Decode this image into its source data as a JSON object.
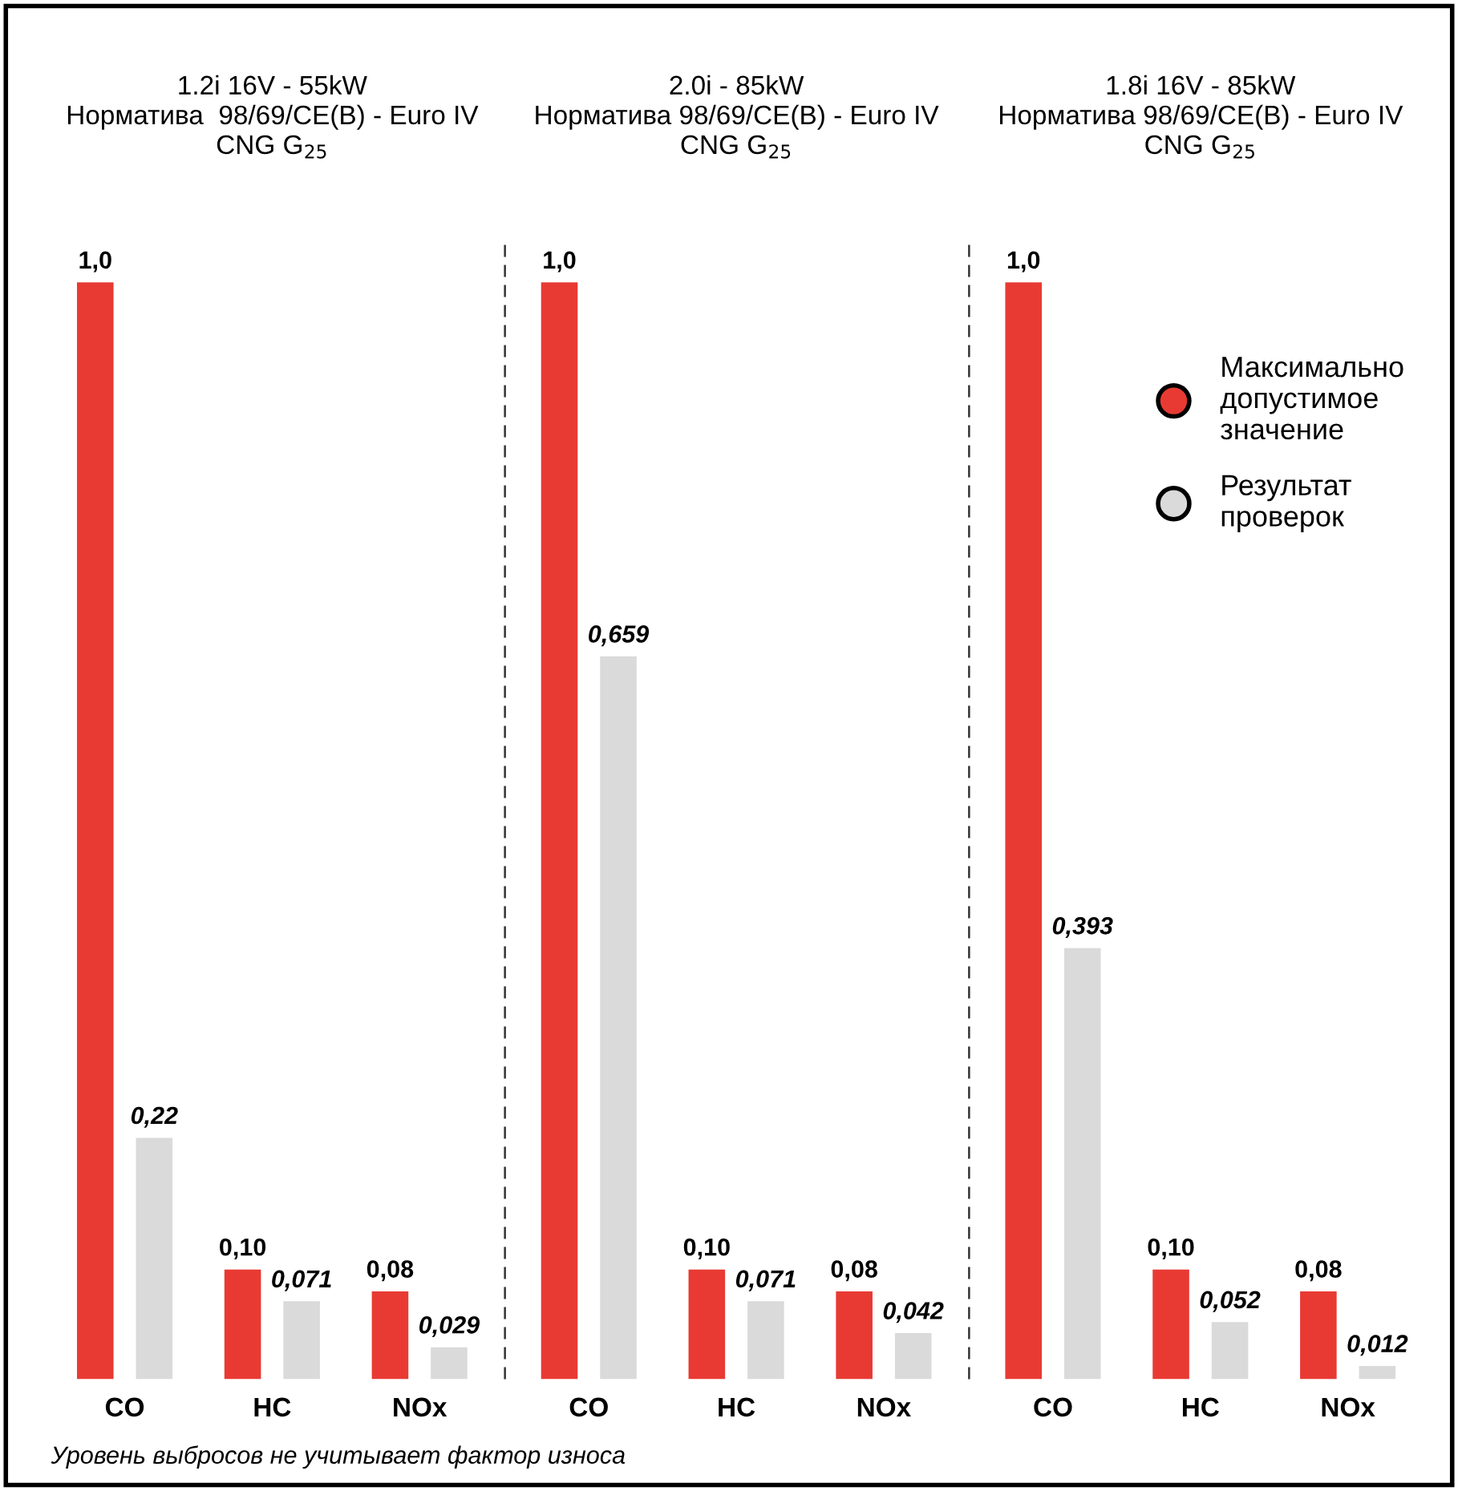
{
  "chart_data": [
    {
      "type": "bar",
      "title": "1.2i 16V - 55kW\nНорматива  98/69/CE(B) - Euro IV\nCNG G$_{25}$",
      "categories": [
        "CO",
        "HC",
        "NOx"
      ],
      "series": [
        {
          "color": "#e83a33",
          "values": [
            1.0,
            0.1,
            0.08
          ],
          "value_labels": [
            "1,0",
            "0,10",
            "0,08"
          ]
        },
        {
          "color": "#dadada",
          "values": [
            0.22,
            0.071,
            0.029
          ],
          "value_labels": [
            "0,22",
            "0,071",
            "0,029"
          ]
        }
      ],
      "annotations": [
        "Уровень выбросов не учитывает фактор износа"
      ]
    },
    {
      "type": "bar",
      "title": "2.0i - 85kW\nНорматива 98/69/CE(B) - Euro IV\nCNG G$_{25}$",
      "categories": [
        "CO",
        "HC",
        "NOx"
      ],
      "series": [
        {
          "color": "#e83a33",
          "values": [
            1.0,
            0.1,
            0.08
          ],
          "value_labels": [
            "1,0",
            "0,10",
            "0,08"
          ]
        },
        {
          "color": "#dadada",
          "values": [
            0.659,
            0.071,
            0.042
          ],
          "value_labels": [
            "0,659",
            "0,071",
            "0,042"
          ]
        }
      ]
    },
    {
      "type": "bar",
      "title": "1.8i 16V - 85kW\nНорматива 98/69/CE(B) - Euro IV\nCNG G$_{25}$",
      "categories": [
        "CO",
        "HC",
        "NOx"
      ],
      "legend": "top right",
      "series": [
        {
          "name": "Максимально\nдопустимое\nзначение",
          "color": "#e83a33",
          "values": [
            1.0,
            0.1,
            0.08
          ],
          "value_labels": [
            "1,0",
            "0,10",
            "0,08"
          ]
        },
        {
          "name": "Результат\nпроверок",
          "color": "#dadada",
          "values": [
            0.393,
            0.052,
            0.012
          ],
          "value_labels": [
            "0,393",
            "0,052",
            "0,012"
          ]
        }
      ]
    }
  ]
}
